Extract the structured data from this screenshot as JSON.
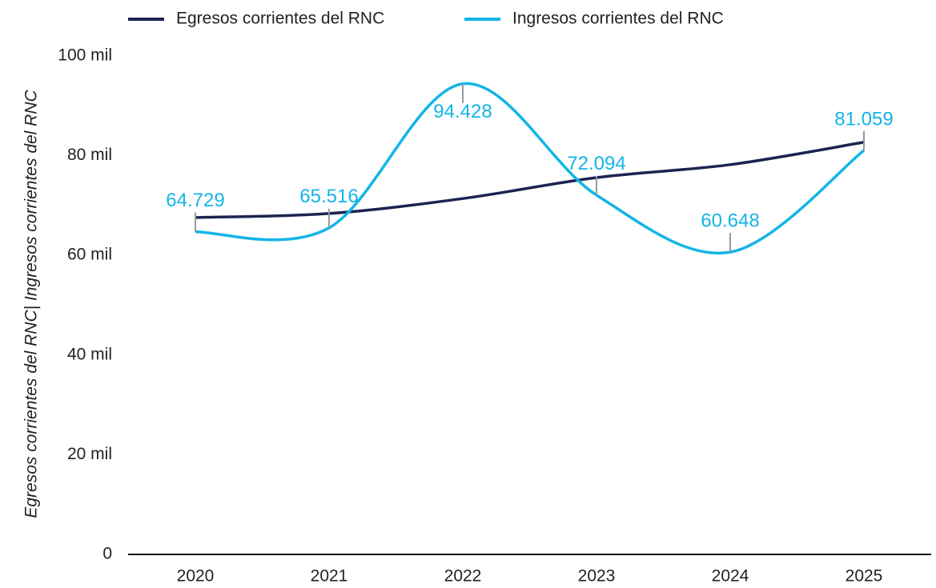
{
  "chart_data": {
    "type": "line",
    "y_label": "Egresos corrientes del RNC| Ingresos corrientes del RNC",
    "categories": [
      "2020",
      "2021",
      "2022",
      "2023",
      "2024",
      "2025"
    ],
    "series": [
      {
        "name": "Egresos corrientes del RNC",
        "color": "#1c2452",
        "values": [
          67600,
          68400,
          71400,
          75600,
          78200,
          82700
        ]
      },
      {
        "name": "Ingresos corrientes del RNC",
        "color": "#13b5e6",
        "values": [
          64729,
          65516,
          94428,
          72094,
          60648,
          81059
        ],
        "value_labels": [
          "64.729",
          "65.516",
          "94.428",
          "72.094",
          "60.648",
          "81.059"
        ]
      }
    ],
    "ylim": [
      0,
      100000
    ],
    "yticks": [
      0,
      {
        "value": 20000,
        "label": "20 mil"
      },
      {
        "value": 40000,
        "label": "40 mil"
      },
      {
        "value": 60000,
        "label": "60 mil"
      },
      {
        "value": 80000,
        "label": "80 mil"
      },
      {
        "value": 100000,
        "label": "100 mil"
      }
    ],
    "legend": "top",
    "grid": false
  }
}
